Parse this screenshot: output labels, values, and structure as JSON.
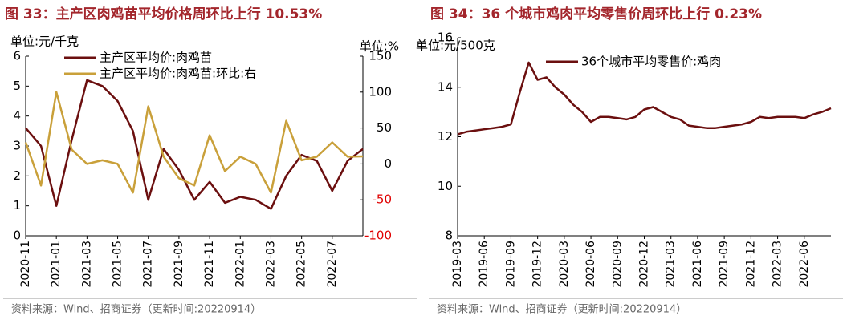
{
  "chart_data": [
    {
      "type": "line",
      "title": "图 33：主产区肉鸡苗平均价格周环比上行 10.53%",
      "y_label": "单位:元/千克",
      "y2_label": "单位:%",
      "source": "资料来源：Wind、招商证券（更新时间:20220914）",
      "categories": [
        "2020-11",
        "2020-12",
        "2021-01",
        "2021-02",
        "2021-03",
        "2021-04",
        "2021-05",
        "2021-06",
        "2021-07",
        "2021-08",
        "2021-09",
        "2021-10",
        "2021-11",
        "2021-12",
        "2022-01",
        "2022-02",
        "2022-03",
        "2022-04",
        "2022-05",
        "2022-06",
        "2022-07",
        "2022-08",
        "2022-09"
      ],
      "xticks": [
        "2020-11",
        "2021-01",
        "2021-03",
        "2021-05",
        "2021-07",
        "2021-09",
        "2021-11",
        "2022-01",
        "2022-03",
        "2022-05",
        "2022-07"
      ],
      "ylim": [
        0,
        6
      ],
      "yticks": [
        0,
        1,
        2,
        3,
        4,
        5,
        6
      ],
      "y2lim": [
        -100,
        150
      ],
      "y2ticks": [
        -100,
        -50,
        0,
        50,
        100,
        150
      ],
      "series": [
        {
          "name": "主产区平均价:肉鸡苗",
          "color": "#6b0f0f",
          "axis": "y",
          "values": [
            3.6,
            3.0,
            1.0,
            3.2,
            5.2,
            5.0,
            4.5,
            3.5,
            1.2,
            2.9,
            2.2,
            1.2,
            1.8,
            1.1,
            1.3,
            1.2,
            0.9,
            2.0,
            2.7,
            2.5,
            1.5,
            2.5,
            2.9
          ]
        },
        {
          "name": "主产区平均价:肉鸡苗:环比:右",
          "color": "#c9a03a",
          "axis": "y2",
          "values": [
            30,
            -30,
            100,
            20,
            0,
            5,
            0,
            -40,
            80,
            10,
            -20,
            -30,
            40,
            -10,
            10,
            0,
            -40,
            60,
            5,
            10,
            30,
            10,
            10.53
          ]
        }
      ]
    },
    {
      "type": "line",
      "title": "图 34：36 个城市鸡肉平均零售价周环比上行 0.23%",
      "y_label": "单位:元/500克",
      "source": "资料来源：Wind、招商证券（更新时间:20220914）",
      "categories": [
        "2019-03",
        "2019-04",
        "2019-05",
        "2019-06",
        "2019-07",
        "2019-08",
        "2019-09",
        "2019-10",
        "2019-11",
        "2019-12",
        "2020-01",
        "2020-02",
        "2020-03",
        "2020-04",
        "2020-05",
        "2020-06",
        "2020-07",
        "2020-08",
        "2020-09",
        "2020-10",
        "2020-11",
        "2020-12",
        "2021-01",
        "2021-02",
        "2021-03",
        "2021-04",
        "2021-05",
        "2021-06",
        "2021-07",
        "2021-08",
        "2021-09",
        "2021-10",
        "2021-11",
        "2021-12",
        "2022-01",
        "2022-02",
        "2022-03",
        "2022-04",
        "2022-05",
        "2022-06",
        "2022-07",
        "2022-08",
        "2022-09"
      ],
      "xticks": [
        "2019-03",
        "2019-06",
        "2019-09",
        "2019-12",
        "2020-03",
        "2020-06",
        "2020-09",
        "2020-12",
        "2021-03",
        "2021-06",
        "2021-09",
        "2021-12",
        "2022-03",
        "2022-06"
      ],
      "ylim": [
        8,
        16
      ],
      "yticks": [
        8,
        10,
        12,
        14,
        16
      ],
      "series": [
        {
          "name": "36个城市平均零售价:鸡肉",
          "color": "#6b0f0f",
          "axis": "y",
          "values": [
            12.1,
            12.2,
            12.25,
            12.3,
            12.35,
            12.4,
            12.5,
            13.8,
            15.0,
            14.3,
            14.4,
            14.0,
            13.7,
            13.3,
            13.0,
            12.6,
            12.8,
            12.8,
            12.75,
            12.7,
            12.8,
            13.1,
            13.2,
            13.0,
            12.8,
            12.7,
            12.45,
            12.4,
            12.35,
            12.35,
            12.4,
            12.45,
            12.5,
            12.6,
            12.8,
            12.75,
            12.8,
            12.8,
            12.8,
            12.75,
            12.9,
            13.0,
            13.15
          ]
        }
      ]
    }
  ]
}
